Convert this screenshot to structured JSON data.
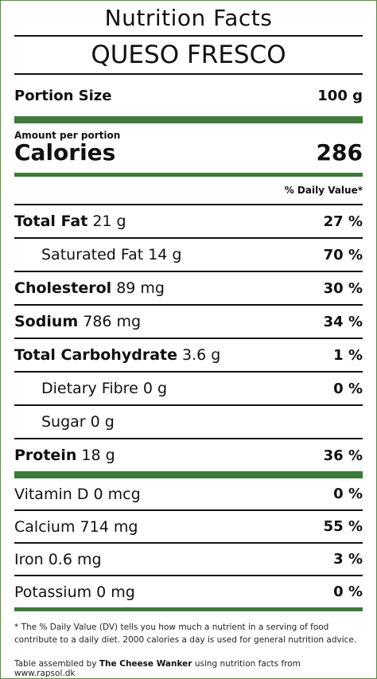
{
  "header": {
    "title": "Nutrition Facts",
    "product": "QUESO FRESCO"
  },
  "portion": {
    "label": "Portion Size",
    "value": "100 g"
  },
  "calories": {
    "amount_label": "Amount per portion",
    "label": "Calories",
    "value": "286"
  },
  "dv_header": "% Daily Value*",
  "nutrients": [
    {
      "name": "Total Fat",
      "amount": "21 g",
      "pct": "27 %"
    },
    {
      "name": "Saturated Fat",
      "amount": "14 g",
      "pct": "70 %"
    },
    {
      "name": "Cholesterol",
      "amount": "89 mg",
      "pct": "30 %"
    },
    {
      "name": "Sodium",
      "amount": "786 mg",
      "pct": "34 %"
    },
    {
      "name": "Total Carbohydrate",
      "amount": "3.6 g",
      "pct": "1 %"
    },
    {
      "name": "Dietary Fibre",
      "amount": "0 g",
      "pct": "0 %"
    },
    {
      "name": "Sugar",
      "amount": "0 g",
      "pct": ""
    },
    {
      "name": "Protein",
      "amount": "18 g",
      "pct": "36 %"
    }
  ],
  "vitamins": [
    {
      "name": "Vitamin D",
      "amount": "0 mcg",
      "pct": "0 %"
    },
    {
      "name": "Calcium",
      "amount": "714 mg",
      "pct": "55 %"
    },
    {
      "name": "Iron",
      "amount": "0.6 mg",
      "pct": "3 %"
    },
    {
      "name": "Potassium",
      "amount": "0 mg",
      "pct": "0 %"
    }
  ],
  "footnote": "* The % Daily Value (DV) tells you how much a nutrient in a serving of food contribute to a daily diet. 2000 calories a day is used for general nutrition advice.",
  "credit": {
    "prefix": "Table assembled by",
    "author": "The Cheese Wanker",
    "suffix": "using nutrition facts from www.rapsol.dk"
  },
  "colors": {
    "accent_green": "#3e7a3c",
    "border_green": "#5a8a4a"
  }
}
